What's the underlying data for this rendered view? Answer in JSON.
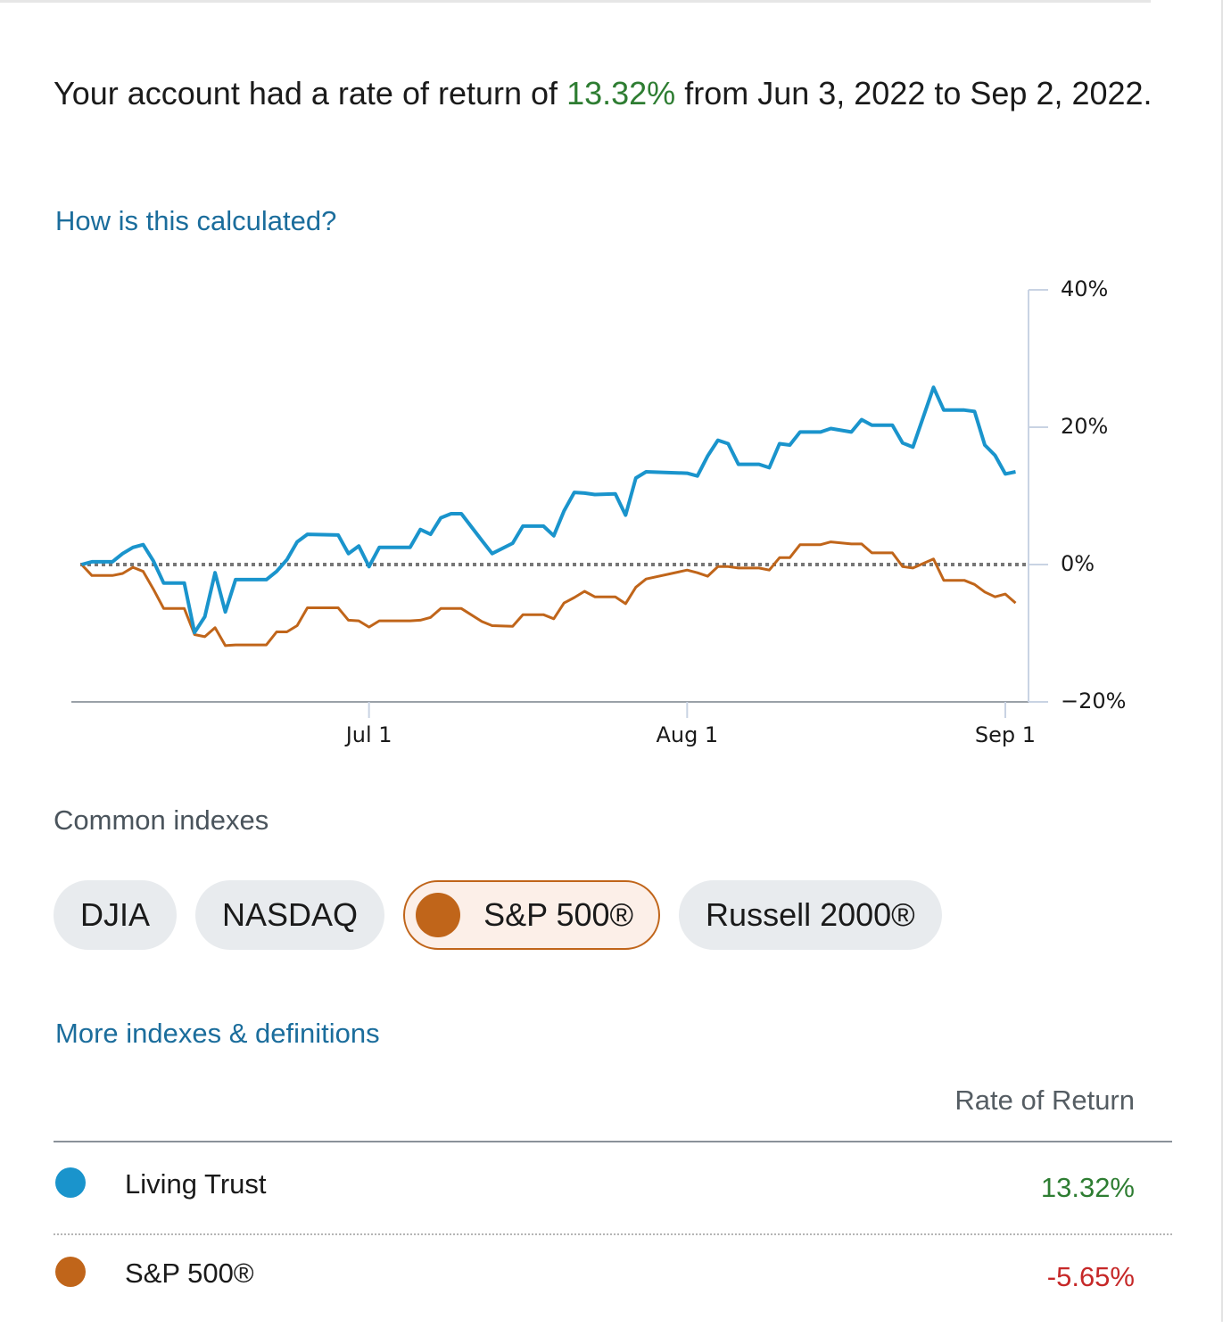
{
  "summary": {
    "before": "Your account had a rate of return of",
    "rate": "13.32%",
    "after": "from Jun 3, 2022 to Sep 2, 2022.",
    "rate_color": "#2e7d32"
  },
  "calc_link": "How is this calculated?",
  "chart_data": {
    "type": "line",
    "x": [
      "Jun 3",
      "Jun 4",
      "Jun 6",
      "Jun 7",
      "Jun 8",
      "Jun 9",
      "Jun 10",
      "Jun 11",
      "Jun 13",
      "Jun 14",
      "Jun 15",
      "Jun 16",
      "Jun 17",
      "Jun 18",
      "Jun 21",
      "Jun 22",
      "Jun 23",
      "Jun 24",
      "Jun 25",
      "Jun 28",
      "Jun 29",
      "Jun 30",
      "Jul 1",
      "Jul 2",
      "Jul 5",
      "Jul 6",
      "Jul 7",
      "Jul 8",
      "Jul 9",
      "Jul 10",
      "Jul 12",
      "Jul 13",
      "Jul 15",
      "Jul 16",
      "Jul 18",
      "Jul 19",
      "Jul 20",
      "Jul 21",
      "Jul 22",
      "Jul 23",
      "Jul 25",
      "Jul 26",
      "Jul 27",
      "Jul 28",
      "Aug 1",
      "Aug 2",
      "Aug 3",
      "Aug 4",
      "Aug 5",
      "Aug 6",
      "Aug 8",
      "Aug 9",
      "Aug 10",
      "Aug 11",
      "Aug 12",
      "Aug 14",
      "Aug 15",
      "Aug 17",
      "Aug 18",
      "Aug 19",
      "Aug 21",
      "Aug 22",
      "Aug 23",
      "Aug 25",
      "Aug 26",
      "Aug 28",
      "Aug 29",
      "Aug 30",
      "Aug 31",
      "Sep 1",
      "Sep 2"
    ],
    "series": [
      {
        "name": "Living Trust",
        "color": "#1a94cc",
        "values": [
          0,
          0.4,
          0.4,
          1.6,
          2.5,
          2.9,
          0.5,
          -2.7,
          -2.7,
          -9.9,
          -7.6,
          -1.2,
          -6.9,
          -2.2,
          -2.2,
          -1.0,
          0.7,
          3.3,
          4.4,
          4.3,
          1.6,
          2.7,
          -0.3,
          2.5,
          2.5,
          5.1,
          4.4,
          6.8,
          7.4,
          7.4,
          3.5,
          1.6,
          3.1,
          5.6,
          5.6,
          4.2,
          7.8,
          10.5,
          10.4,
          10.2,
          10.3,
          7.2,
          12.6,
          13.5,
          13.3,
          12.9,
          15.8,
          18.1,
          17.6,
          14.6,
          14.6,
          14.1,
          17.6,
          17.4,
          19.3,
          19.3,
          19.8,
          19.3,
          21.1,
          20.3,
          20.3,
          17.7,
          17.1,
          25.8,
          22.5,
          22.5,
          22.3,
          17.4,
          15.9,
          13.2,
          13.5
        ]
      },
      {
        "name": "S&P 500®",
        "color": "#c0651a",
        "values": [
          0,
          -1.6,
          -1.6,
          -1.3,
          -0.4,
          -1.0,
          -3.6,
          -6.4,
          -6.4,
          -10.2,
          -10.5,
          -9.2,
          -11.8,
          -11.7,
          -11.7,
          -9.8,
          -9.8,
          -8.9,
          -6.3,
          -6.3,
          -8.1,
          -8.2,
          -9.1,
          -8.2,
          -8.2,
          -8.1,
          -7.7,
          -6.4,
          -6.4,
          -6.4,
          -8.3,
          -8.9,
          -9.0,
          -7.3,
          -7.3,
          -7.9,
          -5.6,
          -4.8,
          -3.9,
          -4.7,
          -4.7,
          -5.7,
          -3.3,
          -2.1,
          -0.8,
          -1.2,
          -1.7,
          -0.3,
          -0.3,
          -0.5,
          -0.5,
          -0.8,
          1.0,
          1.0,
          2.9,
          2.9,
          3.3,
          3.0,
          3.0,
          1.7,
          1.7,
          -0.3,
          -0.5,
          0.8,
          -2.3,
          -2.3,
          -2.9,
          -4.0,
          -4.7,
          -4.3,
          -5.6
        ]
      }
    ],
    "xlim": [
      "Jun 2",
      "Sep 3"
    ],
    "xticks": [
      "Jul 1",
      "Aug 1",
      "Sep 1"
    ],
    "ylim": [
      -20,
      40
    ],
    "yticks": [
      {
        "value": -20,
        "label": "−20%"
      },
      {
        "value": 0,
        "label": "0%"
      },
      {
        "value": 20,
        "label": "20%"
      },
      {
        "value": 40,
        "label": "40%"
      }
    ],
    "reference_line": 0,
    "y_axis_side": "right"
  },
  "indexes": {
    "title": "Common indexes",
    "items": [
      "DJIA",
      "NASDAQ",
      "S&P 500®",
      "Russell 2000®"
    ],
    "selected": 2
  },
  "more_link": "More indexes & definitions",
  "table": {
    "header": "Rate of Return",
    "rows": [
      {
        "return": "13.32%",
        "color": "#2e7d32"
      },
      {
        "return": "-5.65%",
        "color": "#c62828"
      }
    ]
  }
}
